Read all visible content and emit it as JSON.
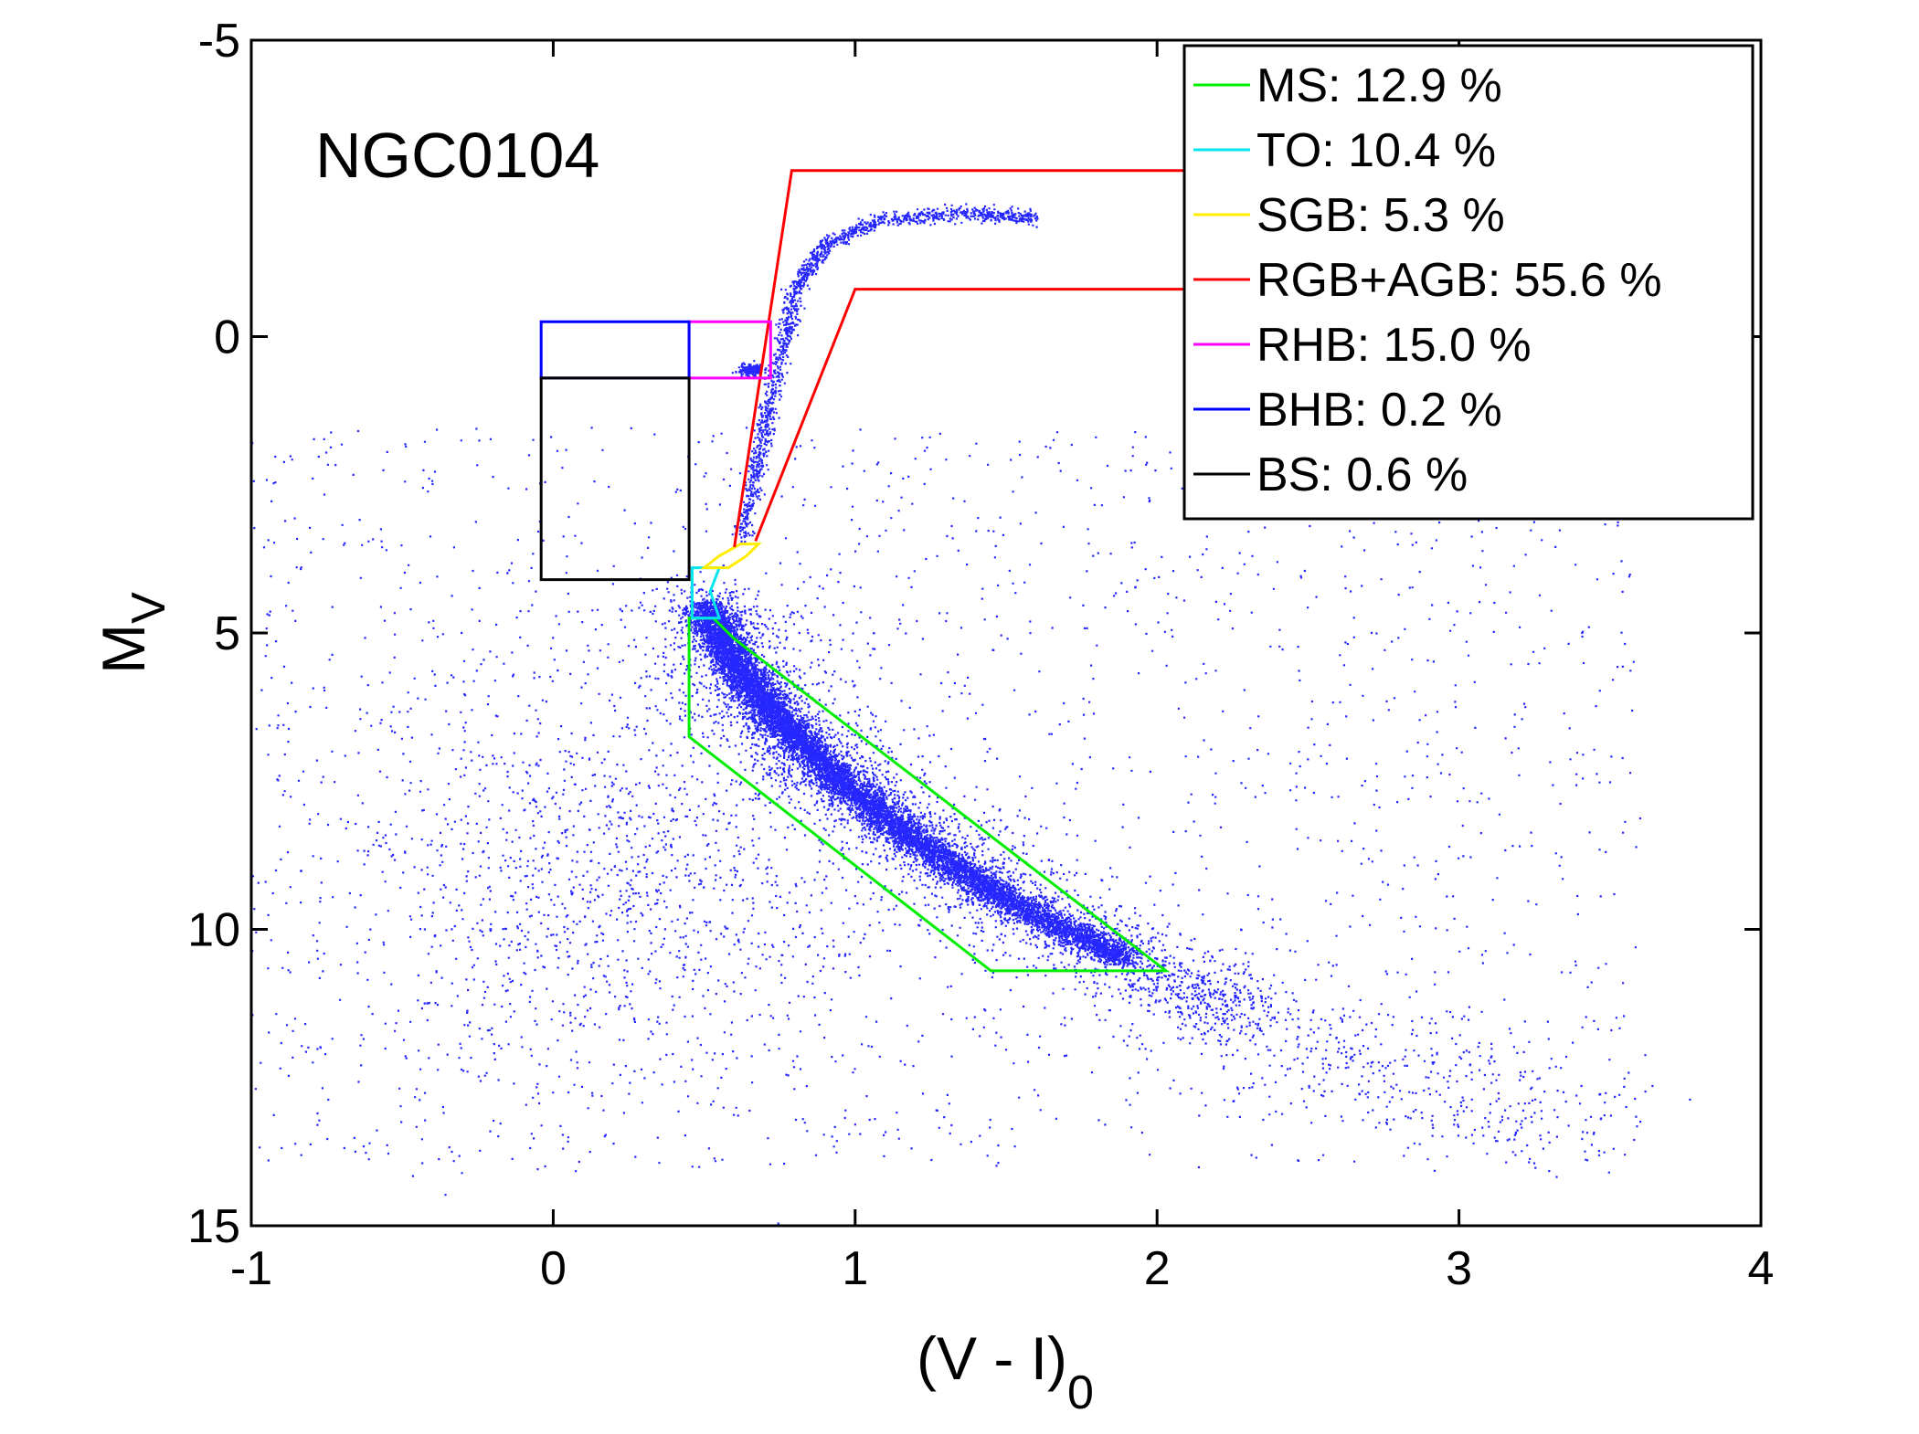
{
  "chart_data": {
    "type": "scatter",
    "title": "",
    "annotation": "NGC0104",
    "xlabel": {
      "main": "(V - I)",
      "subscript": "0"
    },
    "ylabel": {
      "main": "M",
      "subscript": "V"
    },
    "xlim": [
      -1,
      4
    ],
    "ylim": [
      15,
      -5
    ],
    "y_inverted": true,
    "x_ticks": [
      -1,
      0,
      1,
      2,
      3,
      4
    ],
    "x_tick_labels": [
      "-1",
      "0",
      "1",
      "2",
      "3",
      "4"
    ],
    "y_ticks": [
      -5,
      0,
      5,
      10,
      15
    ],
    "y_tick_labels": [
      "-5",
      "0",
      "5",
      "10",
      "15"
    ],
    "grid": false,
    "legend_position": "top-right",
    "scatter_color": "#0000ff",
    "regions": [
      {
        "name": "MS",
        "label": "MS: 12.9 %",
        "color": "#00ee00",
        "polygon": [
          [
            0.45,
            4.75
          ],
          [
            0.53,
            4.75
          ],
          [
            0.6,
            5.1
          ],
          [
            2.03,
            10.7
          ],
          [
            1.45,
            10.7
          ],
          [
            0.45,
            6.75
          ]
        ]
      },
      {
        "name": "TO",
        "label": "TO: 10.4 %",
        "color": "#00e5ee",
        "polygon": [
          [
            0.46,
            3.9
          ],
          [
            0.55,
            3.9
          ],
          [
            0.52,
            4.3
          ],
          [
            0.55,
            4.75
          ],
          [
            0.46,
            4.75
          ]
        ]
      },
      {
        "name": "SGB",
        "label": "SGB: 5.3 %",
        "color": "#ffee00",
        "polygon": [
          [
            0.5,
            3.9
          ],
          [
            0.55,
            3.7
          ],
          [
            0.62,
            3.5
          ],
          [
            0.68,
            3.5
          ],
          [
            0.64,
            3.7
          ],
          [
            0.58,
            3.9
          ]
        ]
      },
      {
        "name": "RGB+AGB",
        "label": "RGB+AGB: 55.6 %",
        "color": "#ff0000",
        "polygon": [
          [
            0.6,
            3.55
          ],
          [
            0.79,
            -2.8
          ],
          [
            2.1,
            -2.8
          ]
        ],
        "second": [
          [
            0.67,
            3.45
          ],
          [
            1.0,
            -0.8
          ],
          [
            2.1,
            -0.8
          ]
        ]
      },
      {
        "name": "RHB",
        "label": "RHB: 15.0 %",
        "color": "#ff00ff",
        "polygon": [
          [
            0.45,
            -0.25
          ],
          [
            0.72,
            -0.25
          ],
          [
            0.72,
            0.7
          ],
          [
            0.45,
            0.7
          ]
        ]
      },
      {
        "name": "BHB",
        "label": "BHB: 0.2 %",
        "color": "#0000ff",
        "polygon": [
          [
            -0.04,
            -0.25
          ],
          [
            0.45,
            -0.25
          ],
          [
            0.45,
            0.7
          ],
          [
            -0.04,
            0.7
          ]
        ]
      },
      {
        "name": "BS",
        "label": "BS: 0.6 %",
        "color": "#000000",
        "polygon": [
          [
            -0.04,
            0.7
          ],
          [
            0.45,
            0.7
          ],
          [
            0.45,
            4.1
          ],
          [
            -0.04,
            4.1
          ]
        ]
      }
    ],
    "distribution": {
      "main_sequence_ridge": [
        [
          0.5,
          4.5
        ],
        [
          0.6,
          5.5
        ],
        [
          0.75,
          6.5
        ],
        [
          0.95,
          7.5
        ],
        [
          1.2,
          8.5
        ],
        [
          1.5,
          9.5
        ],
        [
          1.9,
          10.5
        ],
        [
          2.3,
          11.5
        ],
        [
          2.8,
          12.5
        ],
        [
          3.4,
          13.5
        ]
      ],
      "red_giant_branch": [
        [
          0.62,
          3.4
        ],
        [
          0.68,
          2.0
        ],
        [
          0.74,
          0.5
        ],
        [
          0.8,
          -0.8
        ],
        [
          0.9,
          -1.6
        ],
        [
          1.1,
          -2.0
        ],
        [
          1.4,
          -2.1
        ],
        [
          1.6,
          -2.0
        ]
      ],
      "red_clump": [
        0.65,
        0.55
      ]
    }
  }
}
